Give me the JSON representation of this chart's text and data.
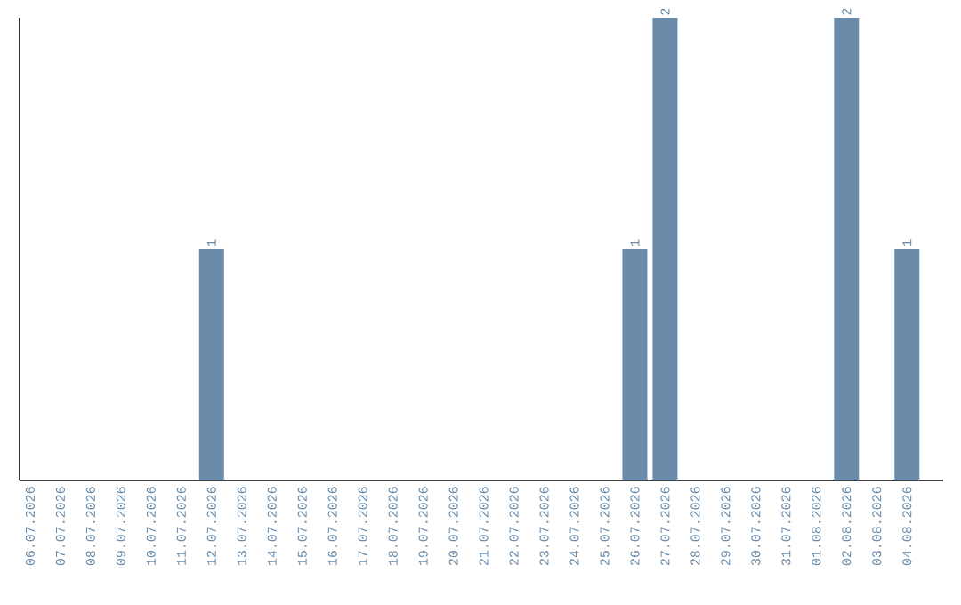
{
  "chart_data": {
    "type": "bar",
    "categories": [
      "06.07.2026",
      "07.07.2026",
      "08.07.2026",
      "09.07.2026",
      "10.07.2026",
      "11.07.2026",
      "12.07.2026",
      "13.07.2026",
      "14.07.2026",
      "15.07.2026",
      "16.07.2026",
      "17.07.2026",
      "18.07.2026",
      "19.07.2026",
      "20.07.2026",
      "21.07.2026",
      "22.07.2026",
      "23.07.2026",
      "24.07.2026",
      "25.07.2026",
      "26.07.2026",
      "27.07.2026",
      "28.07.2026",
      "29.07.2026",
      "30.07.2026",
      "31.07.2026",
      "01.08.2026",
      "02.08.2026",
      "03.08.2026",
      "04.08.2026"
    ],
    "values": [
      0,
      0,
      0,
      0,
      0,
      0,
      1,
      0,
      0,
      0,
      0,
      0,
      0,
      0,
      0,
      0,
      0,
      0,
      0,
      0,
      1,
      2,
      0,
      0,
      0,
      0,
      0,
      2,
      0,
      1
    ],
    "value_labels": [
      null,
      null,
      null,
      null,
      null,
      null,
      "1",
      null,
      null,
      null,
      null,
      null,
      null,
      null,
      null,
      null,
      null,
      null,
      null,
      null,
      "1",
      "2",
      null,
      null,
      null,
      null,
      null,
      "2",
      null,
      "1"
    ],
    "color": "#6a8caa",
    "ylim": [
      0,
      2
    ]
  }
}
